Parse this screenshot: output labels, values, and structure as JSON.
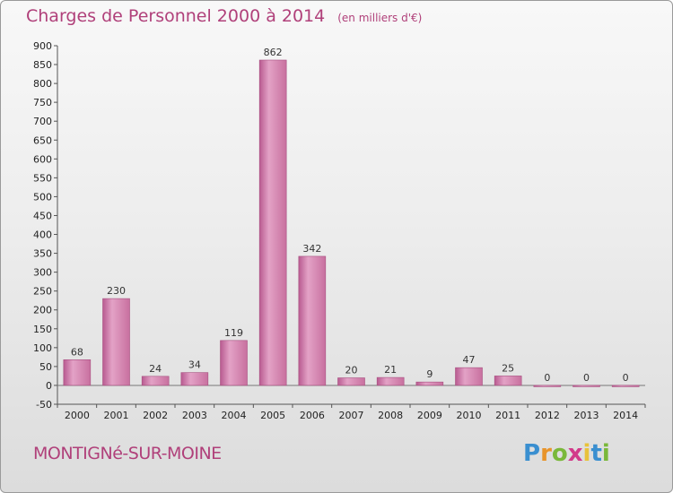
{
  "title": "Charges de Personnel 2000 à 2014",
  "subtitle": "(en milliers d'€)",
  "commune": "MONTIGNé-SUR-MOINE",
  "logo": {
    "letters": [
      "P",
      "r",
      "o",
      "x",
      "i",
      "t",
      "i"
    ],
    "colors": [
      "#3a8fd0",
      "#e8942a",
      "#7ab83a",
      "#d23a8a",
      "#e8c23a",
      "#3a8fd0",
      "#7ab83a"
    ]
  },
  "colors": {
    "bar": "#c86ea0",
    "bar_light": "#e8aacb",
    "text_accent": "#b0407a"
  },
  "chart_data": {
    "type": "bar",
    "categories": [
      "2000",
      "2001",
      "2002",
      "2003",
      "2004",
      "2005",
      "2006",
      "2007",
      "2008",
      "2009",
      "2010",
      "2011",
      "2012",
      "2013",
      "2014"
    ],
    "values": [
      68,
      230,
      24,
      34,
      119,
      862,
      342,
      20,
      21,
      9,
      47,
      25,
      0,
      0,
      0
    ],
    "value_labels": [
      "68",
      "230",
      "24",
      "34",
      "119",
      "862",
      "342",
      "20",
      "21",
      "9",
      "47",
      "25",
      "0",
      "0",
      "0"
    ],
    "ylim": [
      -50,
      900
    ],
    "yticks": [
      -50,
      0,
      50,
      100,
      150,
      200,
      250,
      300,
      350,
      400,
      450,
      500,
      550,
      600,
      650,
      700,
      750,
      800,
      850,
      900
    ],
    "grid": false
  }
}
